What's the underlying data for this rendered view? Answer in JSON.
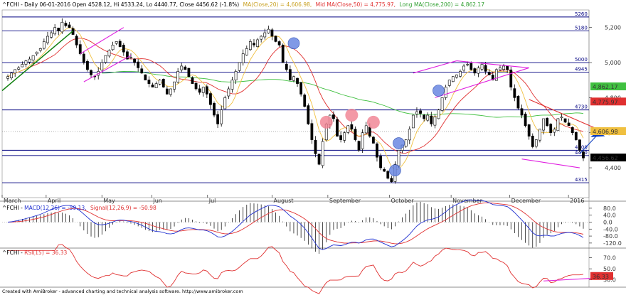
{
  "header": {
    "symbol": "^FCHI - Daily 06-01-2016 Open 4528.12, Hi 4533.24, Lo 4440.77, Close 4456.62 (-1.8%)",
    "ma20_text": "MA(Close,20) = 4,606.98,",
    "ma50_text": "Mid MA(Close,50) = 4,775.97,",
    "ma200_text": "Long MA(Close,200) = 4,862.17"
  },
  "macd_header": {
    "prefix": "^FCHI - ",
    "macd_text": "MACD(12,26) = -59.13,",
    "signal_text": "Signal(12,26,9) = -50.98"
  },
  "rsi_header": {
    "prefix": "^FCHI - ",
    "rsi_text": "RSI(15) = 36.33"
  },
  "footer": "Created with AmiBroker - advanced charting and technical analysis software. http://www.amibroker.com",
  "colors": {
    "candle": "#000000",
    "ma20": "#f0c040",
    "ma50": "#e03030",
    "ma200": "#40c040",
    "levels": "#000080",
    "channel": "#e020e0",
    "trend_green": "#108010",
    "macd": "#2030d0",
    "signal": "#e03030",
    "rsi": "#e03030",
    "highlight_blue": "#6080e0",
    "highlight_pink": "#f08090"
  },
  "chart_data": [
    {
      "type": "candlestick",
      "x_labels": [
        "March",
        "April",
        "May",
        "Jun",
        "Jul",
        "August",
        "September",
        "October",
        "November",
        "December",
        "2016"
      ],
      "y_ticks": [
        4400,
        4600,
        4800,
        5000,
        5200
      ],
      "ylim": [
        4230,
        5300
      ],
      "levels": [
        {
          "value": 5260,
          "label": "5260"
        },
        {
          "value": 5180,
          "label": "5180"
        },
        {
          "value": 5000,
          "label": "5000"
        },
        {
          "value": 4945,
          "label": "4945"
        },
        {
          "value": 4730,
          "label": "4730"
        },
        {
          "value": 4500,
          "label": "4500"
        },
        {
          "value": 4470,
          "label": "4470"
        },
        {
          "value": 4315,
          "label": "4315"
        }
      ],
      "value_badges": [
        {
          "value": 4862.17,
          "label": "4,862.17",
          "color": "#40c040"
        },
        {
          "value": 4775.97,
          "label": "4,775.97",
          "color": "#e03030"
        },
        {
          "value": 4606.98,
          "label": "4,606.98",
          "color": "#f0c040"
        },
        {
          "value": 4456.62,
          "label": "4,456.62",
          "color": "#000000"
        }
      ],
      "close_series": [
        4920,
        4940,
        4960,
        4970,
        4990,
        5010,
        5020,
        5040,
        5060,
        5080,
        5120,
        5150,
        5170,
        5200,
        5180,
        5230,
        5210,
        5200,
        5160,
        5100,
        5050,
        5000,
        4960,
        4930,
        4920,
        4950,
        5000,
        5040,
        5070,
        5100,
        5120,
        5090,
        5060,
        5020,
        5030,
        5000,
        4970,
        4940,
        4900,
        4880,
        4860,
        4880,
        4900,
        4860,
        4820,
        4850,
        4890,
        4950,
        4980,
        4960,
        4920,
        4880,
        4850,
        4830,
        4860,
        4820,
        4760,
        4700,
        4650,
        4730,
        4800,
        4850,
        4900,
        4950,
        5000,
        5050,
        5080,
        5120,
        5100,
        5130,
        5150,
        5170,
        5190,
        5150,
        5120,
        5100,
        5000,
        4960,
        4900,
        4920,
        4880,
        4820,
        4750,
        4650,
        4560,
        4480,
        4420,
        4550,
        4650,
        4700,
        4680,
        4580,
        4560,
        4600,
        4640,
        4620,
        4560,
        4500,
        4600,
        4640,
        4580,
        4540,
        4460,
        4400,
        4380,
        4340,
        4320,
        4420,
        4500,
        4530,
        4560,
        4620,
        4700,
        4720,
        4710,
        4680,
        4700,
        4650,
        4690,
        4730,
        4800,
        4860,
        4900,
        4920,
        4930,
        4950,
        4980,
        4990,
        4960,
        4940,
        4970,
        4990,
        4950,
        4930,
        4900,
        4960,
        4970,
        4980,
        4960,
        4860,
        4800,
        4740,
        4700,
        4640,
        4580,
        4520,
        4560,
        4620,
        4680,
        4640,
        4600,
        4620,
        4680,
        4690,
        4660,
        4640,
        4600,
        4560,
        4500,
        4456
      ],
      "indicators": [
        {
          "name": "MA(Close,20)",
          "last": 4606.98
        },
        {
          "name": "Mid MA(Close,50)",
          "last": 4775.97
        },
        {
          "name": "Long MA(Close,200)",
          "last": 4862.17
        }
      ]
    },
    {
      "type": "line",
      "name": "MACD",
      "y_ticks": [
        80.0,
        40.0,
        0.0,
        -40.0,
        -80.0,
        -120.0
      ],
      "ylim": [
        -145,
        100
      ],
      "y_tick_labels": [
        "80.0",
        "40.0",
        "0.0",
        "-40.0",
        "-80.0",
        "-120.0"
      ],
      "series": [
        {
          "name": "MACD(12,26)",
          "last": -59.13
        },
        {
          "name": "Signal(12,26,9)",
          "last": -50.98
        }
      ]
    },
    {
      "type": "line",
      "name": "RSI",
      "y_ticks": [
        70.0,
        50.0,
        30.0
      ],
      "ylim": [
        18,
        85
      ],
      "y_tick_labels": [
        "70.0",
        "50.0",
        "30.0"
      ],
      "series": [
        {
          "name": "RSI(15)",
          "last": 36.33
        }
      ],
      "badge": "36.33"
    }
  ]
}
